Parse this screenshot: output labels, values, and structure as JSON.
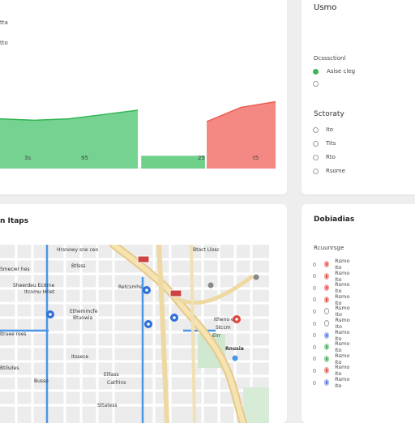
{
  "chart_panel": {
    "y_tick": "tta",
    "y_tick_2": "tto",
    "x_ticks": [
      "3s",
      "95",
      "25",
      "t5"
    ]
  },
  "chart_data": {
    "type": "area",
    "x": [
      0,
      1,
      2,
      3,
      4,
      5,
      6,
      7,
      8
    ],
    "series": [
      {
        "color": "#6fd08a",
        "values": [
          35,
          34,
          35,
          38,
          41,
          0,
          0,
          0,
          0
        ]
      },
      {
        "color": "#f3837d",
        "values": [
          0,
          0,
          0,
          0,
          0,
          0,
          33,
          43,
          47
        ]
      }
    ],
    "x_tick_labels": [
      "3s",
      "95",
      "25",
      "t5"
    ],
    "ylim": [
      0,
      100
    ]
  },
  "filter_panel": {
    "title": "Usmo",
    "section1_label": "Dcsssctionl",
    "section1_options": [
      {
        "label": "Asise cleg",
        "color": "#42b35a"
      },
      {
        "label": "",
        "color": ""
      }
    ],
    "section2_label": "Sctoraty",
    "section2_options": [
      {
        "label": "Ito"
      },
      {
        "label": "Tits"
      },
      {
        "label": "Rto"
      },
      {
        "label": "Rsome"
      }
    ]
  },
  "map_panel": {
    "title": "n Itaps",
    "map_labels": [
      "Hrsnowy sne ceo",
      "Btoct Llosc",
      "Smecwr hes",
      "Sheerdeu Ecdrne",
      "Itcomu Hriet",
      "Btlsss",
      "Retcsmhs",
      "Ethemmcfe",
      "Btuowia",
      "Itruee rees",
      "Itssece",
      "Elllass",
      "Catfrins",
      "Sttatess",
      "Btilsdes",
      "Itheno eca",
      "Stccm",
      "Elrr",
      "Rnusia",
      "Busso"
    ]
  },
  "legend_panel": {
    "title": "Dobiadias",
    "subtitle": "Rcuunrsge",
    "items": [
      {
        "label": "Rsmo Ito",
        "color": "#e0443a",
        "style": "solid"
      },
      {
        "label": "Rsmo Ito",
        "color": "#e0443a",
        "style": "solid"
      },
      {
        "label": "Rsmo Ito",
        "color": "#e0443a",
        "style": "solid"
      },
      {
        "label": "Rsmo Ito",
        "color": "#e0443a",
        "style": "solid"
      },
      {
        "label": "Rsmo Ito",
        "color": "#9aa0a6",
        "style": "hollow"
      },
      {
        "label": "Rsmo Ito",
        "color": "#9aa0a6",
        "style": "hollow"
      },
      {
        "label": "Rsmo Ito",
        "color": "#4a6ee0",
        "style": "solid"
      },
      {
        "label": "Rsmo Ito",
        "color": "#37a84d",
        "style": "solid"
      },
      {
        "label": "Rsmo Ito",
        "color": "#37a84d",
        "style": "solid"
      },
      {
        "label": "Rsmo Ito",
        "color": "#e0443a",
        "style": "solid"
      },
      {
        "label": "Rsmo Ito",
        "color": "#4a6ee0",
        "style": "solid"
      }
    ]
  }
}
